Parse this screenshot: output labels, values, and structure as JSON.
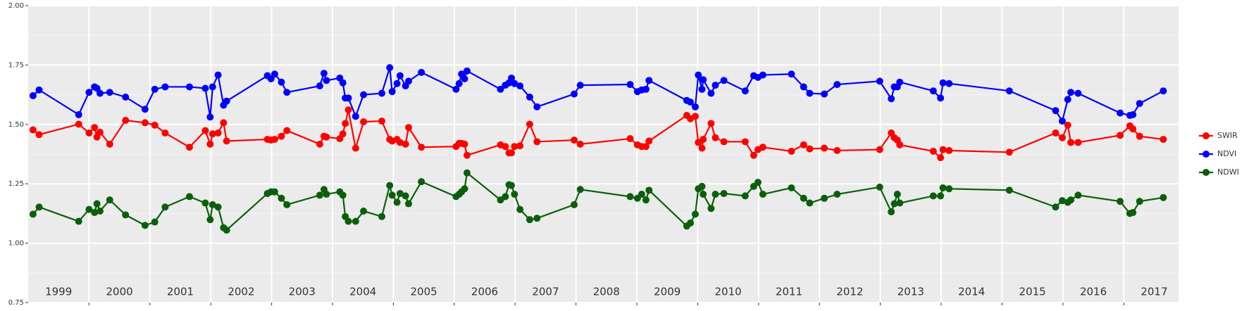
{
  "chart_data": {
    "type": "line",
    "x": [
      1999.08,
      1999.18,
      1999.83,
      2000.0,
      2000.09,
      2000.13,
      2000.18,
      2000.34,
      2000.6,
      2000.92,
      2001.08,
      2001.25,
      2001.65,
      2001.91,
      2001.99,
      2002.03,
      2002.12,
      2002.21,
      2002.26,
      2002.93,
      2002.99,
      2003.05,
      2003.16,
      2003.25,
      2003.79,
      2003.86,
      2003.9,
      2004.12,
      2004.17,
      2004.21,
      2004.26,
      2004.38,
      2004.51,
      2004.81,
      2004.94,
      2004.98,
      2005.06,
      2005.11,
      2005.2,
      2005.25,
      2005.46,
      2006.03,
      2006.08,
      2006.12,
      2006.17,
      2006.21,
      2006.76,
      2006.84,
      2006.9,
      2006.94,
      2006.99,
      2007.08,
      2007.24,
      2007.36,
      2007.97,
      2008.07,
      2008.89,
      2009.01,
      2009.08,
      2009.15,
      2009.2,
      2009.82,
      2009.88,
      2009.96,
      2010.01,
      2010.07,
      2010.09,
      2010.22,
      2010.29,
      2010.43,
      2010.78,
      2010.92,
      2010.99,
      2011.07,
      2011.54,
      2011.74,
      2011.84,
      2012.08,
      2012.29,
      2012.99,
      2013.18,
      2013.23,
      2013.28,
      2013.32,
      2013.87,
      2013.99,
      2014.03,
      2014.13,
      2015.12,
      2015.88,
      2015.99,
      2016.08,
      2016.13,
      2016.25,
      2016.94,
      2017.1,
      2017.15,
      2017.26,
      2017.65
    ],
    "series": [
      {
        "name": "SWIR",
        "color": "#ff0000",
        "values": [
          1.477,
          1.457,
          1.501,
          1.464,
          1.487,
          1.447,
          1.467,
          1.417,
          1.517,
          1.507,
          1.497,
          1.464,
          1.404,
          1.474,
          1.417,
          1.46,
          1.464,
          1.507,
          1.43,
          1.437,
          1.434,
          1.437,
          1.45,
          1.474,
          1.417,
          1.45,
          1.447,
          1.44,
          1.46,
          1.504,
          1.561,
          1.4,
          1.511,
          1.514,
          1.437,
          1.43,
          1.437,
          1.424,
          1.417,
          1.487,
          1.404,
          1.407,
          1.42,
          1.42,
          1.417,
          1.37,
          1.414,
          1.407,
          1.38,
          1.38,
          1.407,
          1.41,
          1.501,
          1.427,
          1.434,
          1.417,
          1.44,
          1.414,
          1.407,
          1.407,
          1.43,
          1.538,
          1.524,
          1.534,
          1.424,
          1.4,
          1.437,
          1.504,
          1.444,
          1.427,
          1.427,
          1.37,
          1.394,
          1.404,
          1.387,
          1.414,
          1.397,
          1.4,
          1.39,
          1.394,
          1.464,
          1.444,
          1.434,
          1.414,
          1.387,
          1.36,
          1.394,
          1.39,
          1.383,
          1.464,
          1.444,
          1.497,
          1.424,
          1.424,
          1.454,
          1.494,
          1.481,
          1.45,
          1.437
        ]
      },
      {
        "name": "NDVI",
        "color": "#0000ff",
        "values": [
          1.621,
          1.645,
          1.541,
          1.635,
          1.658,
          1.652,
          1.631,
          1.635,
          1.615,
          1.564,
          1.648,
          1.658,
          1.658,
          1.652,
          1.531,
          1.658,
          1.708,
          1.581,
          1.598,
          1.705,
          1.692,
          1.712,
          1.678,
          1.635,
          1.662,
          1.715,
          1.685,
          1.695,
          1.675,
          1.611,
          1.611,
          1.534,
          1.625,
          1.631,
          1.739,
          1.638,
          1.672,
          1.705,
          1.662,
          1.682,
          1.719,
          1.648,
          1.672,
          1.712,
          1.692,
          1.725,
          1.648,
          1.665,
          1.675,
          1.695,
          1.672,
          1.662,
          1.615,
          1.574,
          1.628,
          1.665,
          1.668,
          1.638,
          1.645,
          1.648,
          1.685,
          1.601,
          1.594,
          1.574,
          1.708,
          1.648,
          1.688,
          1.631,
          1.665,
          1.685,
          1.641,
          1.705,
          1.698,
          1.708,
          1.712,
          1.658,
          1.631,
          1.628,
          1.668,
          1.682,
          1.608,
          1.658,
          1.658,
          1.678,
          1.641,
          1.611,
          1.675,
          1.672,
          1.641,
          1.558,
          1.514,
          1.605,
          1.635,
          1.631,
          1.548,
          1.538,
          1.541,
          1.588,
          1.641
        ]
      },
      {
        "name": "NDWI",
        "color": "#0b5f0b",
        "values": [
          1.122,
          1.152,
          1.092,
          1.142,
          1.129,
          1.166,
          1.135,
          1.182,
          1.119,
          1.075,
          1.089,
          1.152,
          1.196,
          1.169,
          1.099,
          1.162,
          1.152,
          1.065,
          1.055,
          1.209,
          1.216,
          1.216,
          1.189,
          1.162,
          1.202,
          1.226,
          1.206,
          1.216,
          1.202,
          1.112,
          1.092,
          1.092,
          1.135,
          1.112,
          1.243,
          1.202,
          1.172,
          1.209,
          1.199,
          1.166,
          1.259,
          1.196,
          1.206,
          1.216,
          1.229,
          1.296,
          1.182,
          1.196,
          1.246,
          1.243,
          1.206,
          1.142,
          1.099,
          1.105,
          1.162,
          1.226,
          1.196,
          1.189,
          1.206,
          1.182,
          1.223,
          1.072,
          1.085,
          1.122,
          1.229,
          1.239,
          1.206,
          1.146,
          1.206,
          1.209,
          1.199,
          1.239,
          1.256,
          1.206,
          1.233,
          1.189,
          1.169,
          1.189,
          1.206,
          1.236,
          1.132,
          1.166,
          1.206,
          1.169,
          1.199,
          1.199,
          1.233,
          1.229,
          1.223,
          1.152,
          1.179,
          1.172,
          1.182,
          1.202,
          1.176,
          1.125,
          1.129,
          1.176,
          1.192
        ]
      }
    ],
    "xlim": [
      1999.0,
      2017.9
    ],
    "xticks": [
      {
        "value": 1999.5,
        "label": "1999"
      },
      {
        "value": 2000.5,
        "label": "2000"
      },
      {
        "value": 2001.5,
        "label": "2001"
      },
      {
        "value": 2002.5,
        "label": "2002"
      },
      {
        "value": 2003.5,
        "label": "2003"
      },
      {
        "value": 2004.5,
        "label": "2004"
      },
      {
        "value": 2005.5,
        "label": "2005"
      },
      {
        "value": 2006.5,
        "label": "2006"
      },
      {
        "value": 2007.5,
        "label": "2007"
      },
      {
        "value": 2008.5,
        "label": "2008"
      },
      {
        "value": 2009.5,
        "label": "2009"
      },
      {
        "value": 2010.5,
        "label": "2010"
      },
      {
        "value": 2011.5,
        "label": "2011"
      },
      {
        "value": 2012.5,
        "label": "2012"
      },
      {
        "value": 2013.5,
        "label": "2013"
      },
      {
        "value": 2014.5,
        "label": "2014"
      },
      {
        "value": 2015.5,
        "label": "2015"
      },
      {
        "value": 2016.5,
        "label": "2016"
      },
      {
        "value": 2017.5,
        "label": "2017"
      }
    ],
    "xgrid": [
      2000,
      2001,
      2002,
      2003,
      2004,
      2005,
      2006,
      2007,
      2008,
      2009,
      2010,
      2011,
      2012,
      2013,
      2014,
      2015,
      2016,
      2017
    ],
    "ylim": [
      0.75,
      2.0
    ],
    "yticks": [
      0.75,
      {
        "value": 1.0,
        "label": "1.00"
      },
      1.25,
      {
        "value": 1.5,
        "label": "1.50"
      },
      1.75,
      {
        "value": 2.0,
        "label": "2.00"
      }
    ],
    "grid": true,
    "legend": "right"
  }
}
